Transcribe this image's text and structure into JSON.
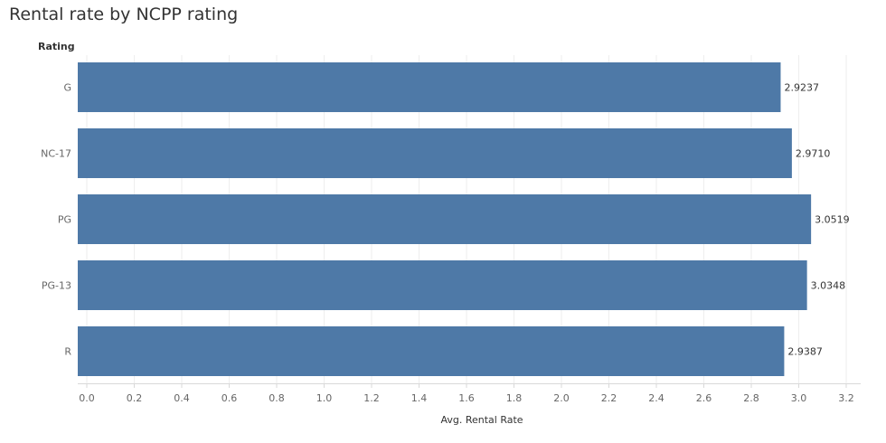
{
  "page": {
    "title": "Rental rate by NCPP rating"
  },
  "chart_data": {
    "type": "bar",
    "orientation": "horizontal",
    "row_header": "Rating",
    "categories": [
      "G",
      "NC-17",
      "PG",
      "PG-13",
      "R"
    ],
    "values": [
      2.9237,
      2.971,
      3.0519,
      3.0348,
      2.9387
    ],
    "data_labels": [
      "2.9237",
      "2.9710",
      "3.0519",
      "3.0348",
      "2.9387"
    ],
    "xlabel": "Avg. Rental Rate",
    "xlim": [
      0,
      3.2
    ],
    "xticks": [
      0.0,
      0.2,
      0.4,
      0.6,
      0.8,
      1.0,
      1.2,
      1.4,
      1.6,
      1.8,
      2.0,
      2.2,
      2.4,
      2.6,
      2.8,
      3.0,
      3.2
    ],
    "xtick_labels": [
      "0.0",
      "0.2",
      "0.4",
      "0.6",
      "0.8",
      "1.0",
      "1.2",
      "1.4",
      "1.6",
      "1.8",
      "2.0",
      "2.2",
      "2.4",
      "2.6",
      "2.8",
      "3.0",
      "3.2"
    ],
    "bar_color": "#4E79A7",
    "grid": "vertical-light",
    "legend": "none"
  }
}
